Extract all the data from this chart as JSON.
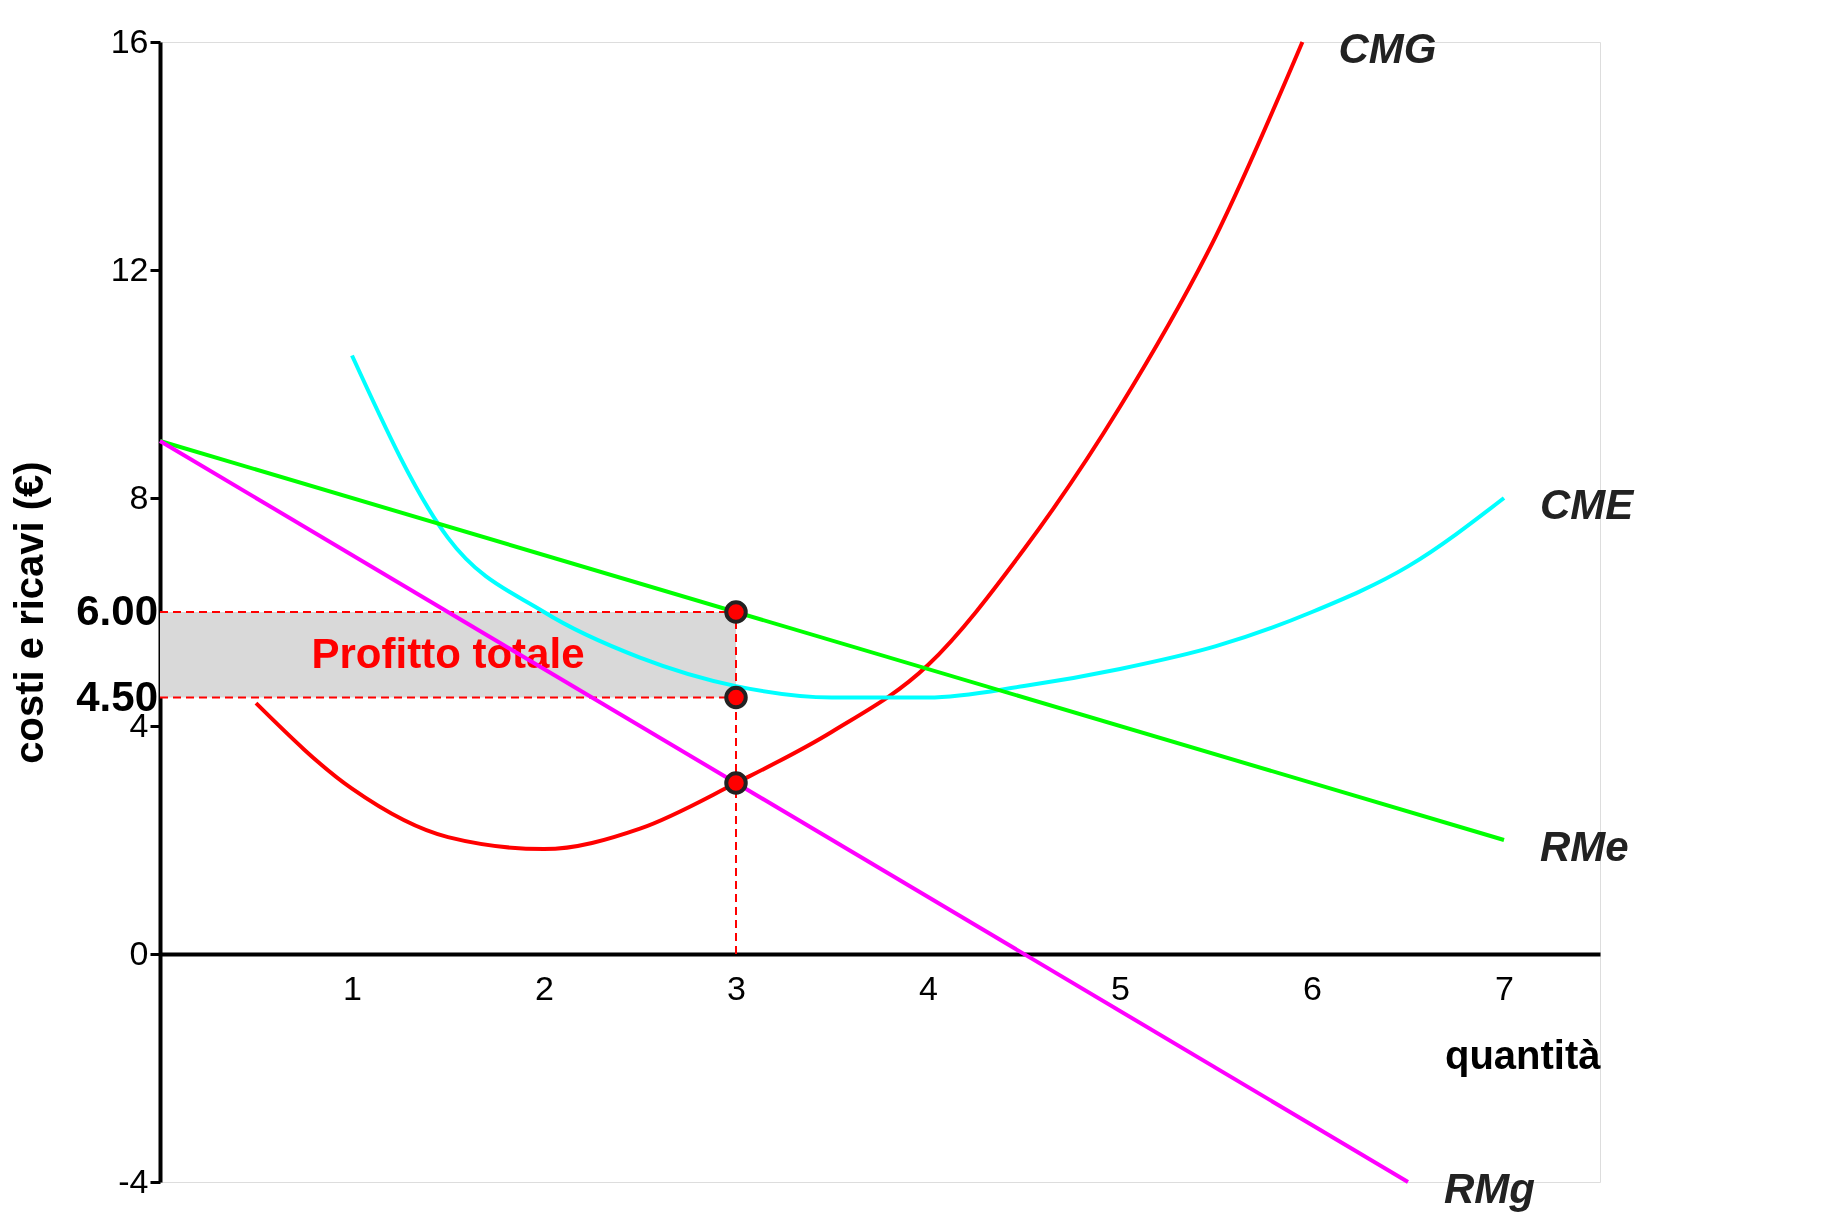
{
  "chart_data": {
    "type": "line",
    "xlabel": "quantità",
    "ylabel": "costi e ricavi (€)",
    "xlim": [
      0,
      7.5
    ],
    "ylim": [
      -4,
      16
    ],
    "xticks": [
      1,
      2,
      3,
      4,
      5,
      6,
      7
    ],
    "yticks": [
      -4,
      0,
      4,
      8,
      12,
      16
    ],
    "grid": false,
    "marker": "none",
    "line_style": "solid",
    "series": [
      {
        "name": "CMG",
        "color": "#ff0000",
        "x": [
          0.5,
          1,
          1.5,
          2,
          2.5,
          3,
          3.5,
          4,
          4.5,
          5,
          5.5,
          5.95
        ],
        "values": [
          4.4,
          2.9,
          2.05,
          1.84,
          2.2,
          3,
          3.9,
          5.07,
          7.1,
          9.6,
          12.6,
          16
        ]
      },
      {
        "name": "CME",
        "color": "#00ffff",
        "x": [
          1,
          1.5,
          2,
          2.5,
          3,
          3.5,
          4,
          4.5,
          5,
          5.5,
          6,
          6.5,
          7
        ],
        "values": [
          10.5,
          7.3,
          6.0,
          5.2,
          4.7,
          4.5,
          4.5,
          4.7,
          5.0,
          5.4,
          6.0,
          6.8,
          8.0
        ]
      },
      {
        "name": "RMe",
        "color": "#00ff00",
        "x": [
          0,
          7
        ],
        "values": [
          9,
          2
        ]
      },
      {
        "name": "RMg",
        "color": "#ff00ff",
        "x": [
          0,
          6.5
        ],
        "values": [
          9,
          -4
        ]
      },
      {
        "type": "scatter",
        "color": "#ff0000",
        "marker": "circle",
        "x": [
          3,
          3,
          3
        ],
        "values": [
          6,
          4.5,
          3
        ]
      }
    ],
    "ref_lines": [
      {
        "axis": "x",
        "value": 3,
        "color": "#ff0000",
        "line_style": "dashed"
      },
      {
        "axis": "y",
        "value": 6,
        "label": "6.00",
        "color": "#ff0000",
        "line_style": "dashed"
      },
      {
        "axis": "y",
        "value": 4.5,
        "label": "4.50",
        "color": "#ff0000",
        "line_style": "dashed"
      }
    ],
    "bands": [
      {
        "axis": "y",
        "from": 4.5,
        "to": 6,
        "label": "Profitto totale",
        "color": "#d9d9d9"
      }
    ]
  }
}
